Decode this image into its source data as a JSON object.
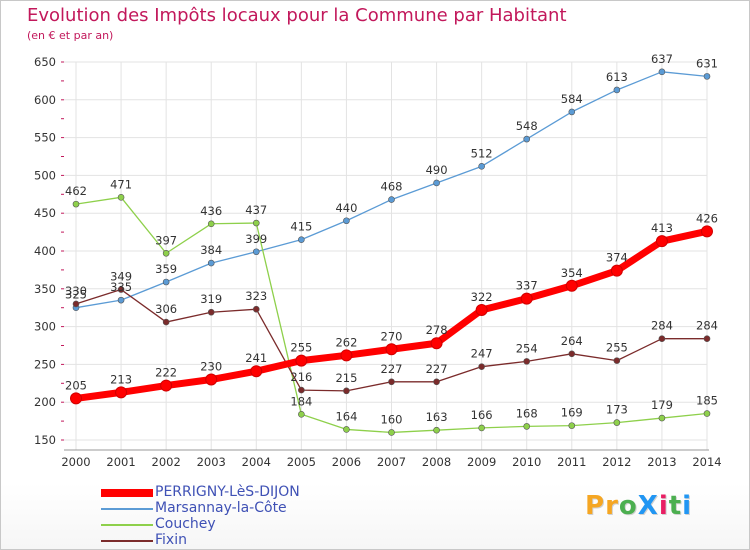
{
  "title": "Evolution des Impôts locaux pour la Commune par Habitant",
  "subtitle": "(en € et par an)",
  "logo": {
    "text": "ProXiti",
    "letters": [
      "P",
      "r",
      "o",
      "X",
      "i",
      "t",
      "i"
    ],
    "colors": [
      "#f5a623",
      "#f5a623",
      "#4caf50",
      "#2196f3",
      "#e91e63",
      "#4caf50",
      "#2196f3"
    ]
  },
  "chart_data": {
    "type": "line",
    "x": [
      2000,
      2001,
      2002,
      2003,
      2004,
      2005,
      2006,
      2007,
      2008,
      2009,
      2010,
      2011,
      2012,
      2013,
      2014
    ],
    "ylim": [
      150,
      650
    ],
    "yticks": [
      150,
      200,
      250,
      300,
      350,
      400,
      450,
      500,
      550,
      600,
      650
    ],
    "grid": true,
    "legend": "bottom-left",
    "series": [
      {
        "name": "PERRIGNY-LèS-DIJON",
        "color": "#ff0000",
        "values": [
          205,
          213,
          222,
          230,
          241,
          255,
          262,
          270,
          278,
          322,
          337,
          354,
          374,
          413,
          426
        ]
      },
      {
        "name": "Marsannay-la-Côte",
        "color": "#5b9bd5",
        "values": [
          325,
          335,
          359,
          384,
          399,
          415,
          440,
          468,
          490,
          512,
          548,
          584,
          613,
          637,
          631
        ]
      },
      {
        "name": "Couchey",
        "color": "#8ed04b",
        "values": [
          462,
          471,
          397,
          436,
          437,
          184,
          164,
          160,
          163,
          166,
          168,
          169,
          173,
          179,
          185
        ]
      },
      {
        "name": "Fixin",
        "color": "#7b2b2b",
        "values": [
          330,
          349,
          306,
          319,
          323,
          216,
          215,
          227,
          227,
          247,
          254,
          264,
          255,
          284,
          284
        ]
      }
    ]
  }
}
